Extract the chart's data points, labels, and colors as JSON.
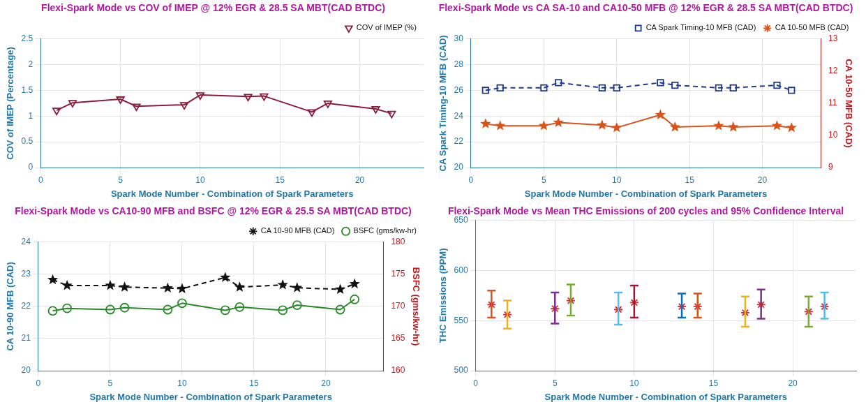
{
  "chart_data": [
    {
      "type": "line",
      "title": "Flexi-Spark Mode vs COV of IMEP @ 12% EGR & 28.5 SA MBT(CAD BTDC)",
      "xlabel": "Spark Mode Number - Combination of Spark Parameters",
      "ylabel": "COV of IMEP (Percentage)",
      "x": [
        1,
        2,
        5,
        6,
        9,
        10,
        13,
        14,
        17,
        18,
        21,
        22
      ],
      "xlim": [
        0,
        24
      ],
      "xticks": [
        0,
        5,
        10,
        15,
        20
      ],
      "ylim": [
        0,
        2.5
      ],
      "yticks": [
        0,
        0.5,
        1,
        1.5,
        2,
        2.5
      ],
      "grid": true,
      "legend": "top right",
      "series": [
        {
          "name": "COV of IMEP (%)",
          "color": "#8b1c3c",
          "marker": "triangle",
          "line_style": "solid",
          "values": [
            1.11,
            1.26,
            1.33,
            1.19,
            1.22,
            1.41,
            1.38,
            1.39,
            1.08,
            1.25,
            1.14,
            1.05
          ]
        }
      ]
    },
    {
      "type": "line",
      "title": "Flexi-Spark Mode vs CA SA-10 and CA10-50 MFB @ 12% EGR & 28.5 SA MBT(CAD BTDC)",
      "xlabel": "Spark Mode Number - Combination of Spark Parameters",
      "ylabel": "CA Spark Timing-10 MFB (CAD)",
      "y2label": "CA 10-50 MFB (CAD)",
      "x": [
        1,
        2,
        5,
        6,
        9,
        10,
        13,
        14,
        17,
        18,
        21,
        22
      ],
      "xlim": [
        0,
        24
      ],
      "xticks": [
        0,
        5,
        10,
        15,
        20
      ],
      "ylim": [
        20,
        30
      ],
      "yticks": [
        20,
        22,
        24,
        26,
        28,
        30
      ],
      "y2lim": [
        9,
        13
      ],
      "y2ticks": [
        9,
        10,
        11,
        12,
        13
      ],
      "grid": true,
      "legend": "top right",
      "series": [
        {
          "name": "CA Spark Timing-10 MFB (CAD)",
          "color": "#1f3a8a",
          "marker": "square",
          "line_style": "dashed",
          "values": [
            26.0,
            26.2,
            26.2,
            26.6,
            26.2,
            26.2,
            26.6,
            26.4,
            26.2,
            26.2,
            26.4,
            26.0
          ]
        },
        {
          "name": "CA 10-50 MFB (CAD)",
          "color": "#d95319",
          "marker": "star",
          "line_style": "solid",
          "axis": "y2",
          "values": [
            10.36,
            10.3,
            10.3,
            10.4,
            10.32,
            10.24,
            10.64,
            10.26,
            10.3,
            10.26,
            10.3,
            10.24
          ]
        }
      ]
    },
    {
      "type": "line",
      "title": "Flexi-Spark Mode vs CA10-90 MFB and BSFC @ 12% EGR & 25.5 SA MBT(CAD BTDC)",
      "xlabel": "Spark Mode Number - Combination of Spark Parameters",
      "ylabel": "CA 10-90 MFB (CAD)",
      "y2label": "BSFC (gms/kw-hr)",
      "x": [
        1,
        2,
        5,
        6,
        9,
        10,
        13,
        14,
        17,
        18,
        21,
        22
      ],
      "xlim": [
        0,
        24
      ],
      "xticks": [
        0,
        5,
        10,
        15,
        20
      ],
      "ylim": [
        20,
        24
      ],
      "yticks": [
        20,
        21,
        22,
        23,
        24
      ],
      "y2lim": [
        160,
        180
      ],
      "y2ticks": [
        160,
        165,
        170,
        175,
        180
      ],
      "grid": true,
      "legend": "top right",
      "series": [
        {
          "name": "CA 10-90 MFB (CAD)",
          "color": "#111111",
          "marker": "star",
          "line_style": "dashed",
          "values": [
            22.83,
            22.65,
            22.65,
            22.6,
            22.57,
            22.55,
            22.9,
            22.6,
            22.67,
            22.58,
            22.53,
            22.7
          ]
        },
        {
          "name": "BSFC (gms/kw-hr)",
          "color": "#2a8a2a",
          "marker": "circle",
          "line_style": "solid",
          "axis": "y2",
          "values": [
            169.3,
            169.7,
            169.5,
            169.8,
            169.5,
            170.5,
            169.4,
            169.9,
            169.4,
            170.2,
            169.5,
            171.1
          ]
        }
      ]
    },
    {
      "type": "scatter",
      "title": "Flexi-Spark Mode vs Mean THC Emissions of 200 cycles and 95% Confidence Interval",
      "xlabel": "Spark Mode Number - Combination of Spark Parameters",
      "ylabel": "THC Emissions (PPM)",
      "x": [
        1,
        2,
        5,
        6,
        9,
        10,
        13,
        14,
        17,
        18,
        21,
        22
      ],
      "xlim": [
        0,
        24
      ],
      "xticks": [
        0,
        5,
        10,
        15,
        20
      ],
      "ylim": [
        500,
        650
      ],
      "yticks": [
        500,
        550,
        600,
        650
      ],
      "grid": true,
      "colors": [
        "#d95319",
        "#edb120",
        "#7e2f8e",
        "#77ac30",
        "#4dbeee",
        "#a2142f",
        "#0072bd",
        "#d95319",
        "#edb120",
        "#7e2f8e",
        "#77ac30",
        "#4dbeee"
      ],
      "series": [
        {
          "color": "#d62728",
          "marker": "cross",
          "values": [
            566,
            556,
            562,
            570,
            561,
            568,
            564,
            564,
            558,
            566,
            559,
            564
          ],
          "errors": [
            [
              553,
              580
            ],
            [
              542,
              570
            ],
            [
              547,
              578
            ],
            [
              555,
              586
            ],
            [
              546,
              578
            ],
            [
              553,
              585
            ],
            [
              553,
              577
            ],
            [
              553,
              577
            ],
            [
              544,
              574
            ],
            [
              552,
              581
            ],
            [
              544,
              574
            ],
            [
              552,
              578
            ]
          ]
        }
      ]
    }
  ]
}
